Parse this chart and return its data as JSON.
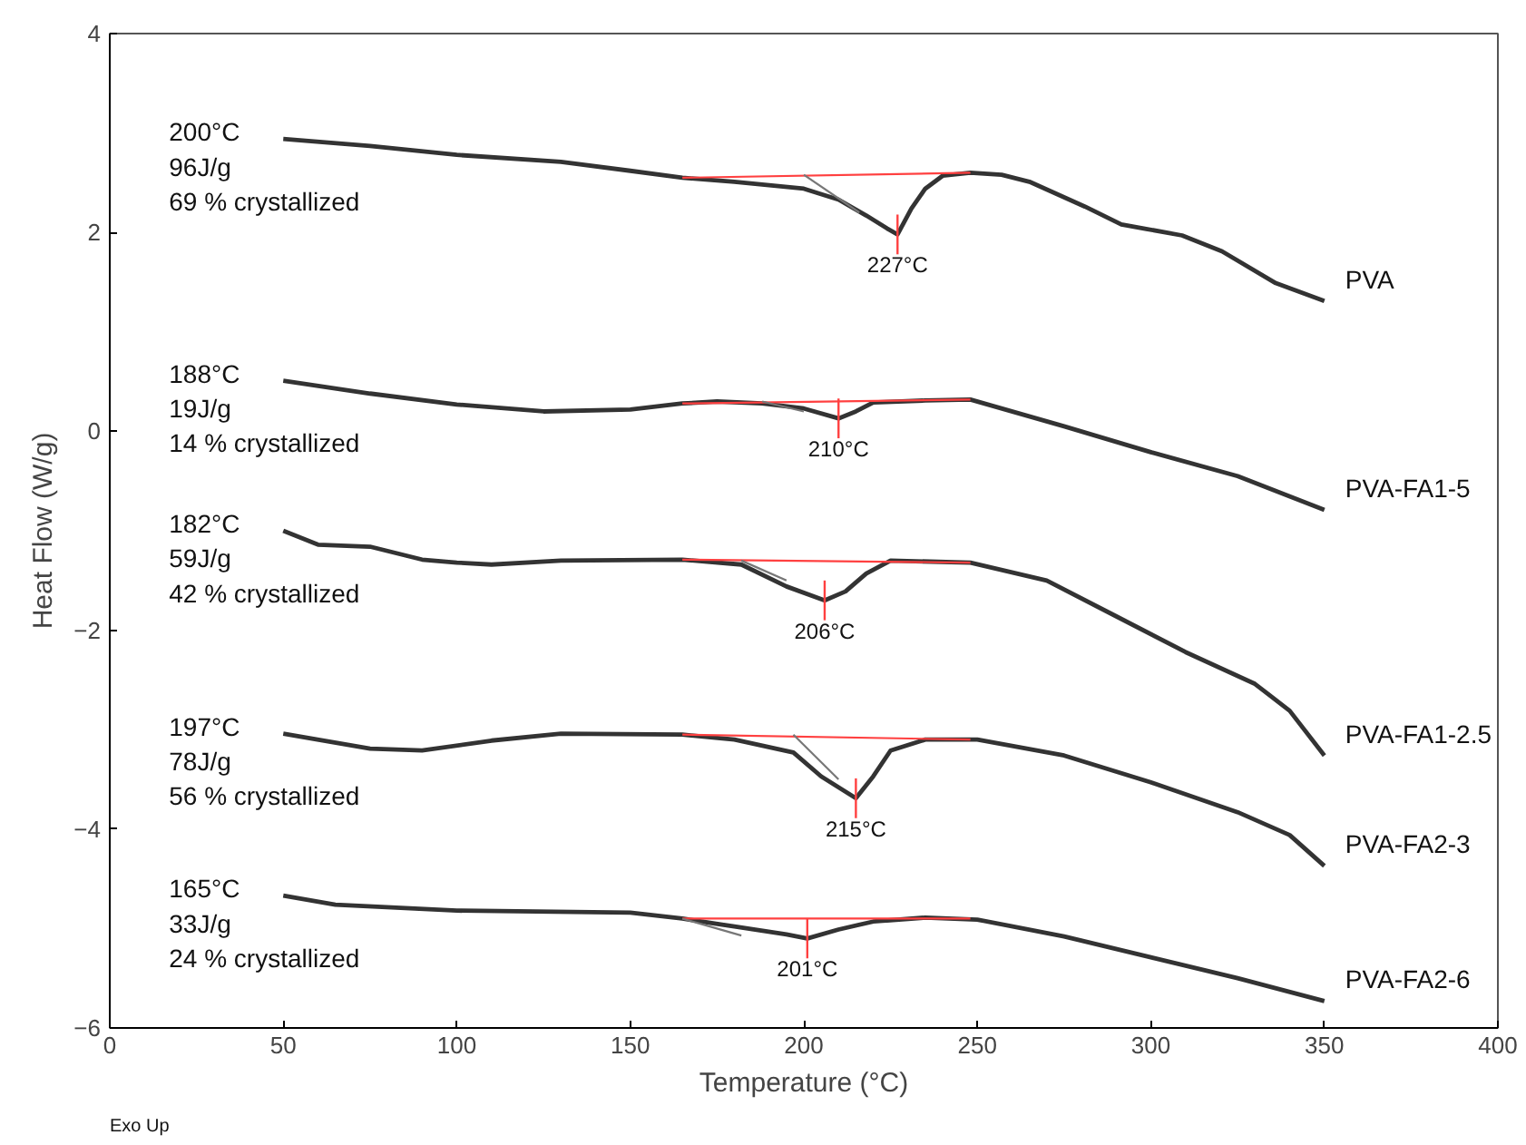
{
  "chart_data": {
    "type": "line",
    "xlabel": "Temperature (°C)",
    "ylabel": "Heat Flow (W/g)",
    "xlim": [
      0,
      400
    ],
    "ylim": [
      -6,
      4
    ],
    "xticks": [
      0,
      50,
      100,
      150,
      200,
      250,
      300,
      350,
      400
    ],
    "yticks": [
      -6,
      -4,
      -2,
      0,
      2,
      4
    ],
    "grid": false,
    "series": [
      {
        "name": "PVA",
        "color": "#333333",
        "x": [
          50,
          75,
          100,
          130,
          150,
          165,
          180,
          200,
          210,
          218,
          224,
          227,
          231,
          235,
          240,
          248,
          257,
          265,
          281,
          291.5,
          309,
          320.5,
          336,
          350
        ],
        "values": [
          2.94,
          2.87,
          2.78,
          2.71,
          2.62,
          2.55,
          2.51,
          2.44,
          2.33,
          2.17,
          2.04,
          1.98,
          2.24,
          2.44,
          2.57,
          2.6,
          2.58,
          2.51,
          2.26,
          2.08,
          1.97,
          1.81,
          1.49,
          1.31
        ]
      },
      {
        "name": "PVA-FA1-5",
        "color": "#333333",
        "x": [
          50,
          75,
          100,
          125,
          150,
          165,
          175,
          188,
          200,
          210,
          215,
          220,
          235,
          248,
          275,
          300,
          325,
          350
        ],
        "values": [
          0.51,
          0.38,
          0.27,
          0.2,
          0.22,
          0.28,
          0.3,
          0.28,
          0.23,
          0.13,
          0.2,
          0.29,
          0.31,
          0.32,
          0.05,
          -0.21,
          -0.45,
          -0.79
        ]
      },
      {
        "name": "PVA-FA1-2.5",
        "color": "#333333",
        "x": [
          50,
          60,
          75,
          90,
          100,
          110,
          130,
          165,
          182,
          195,
          206,
          212,
          218,
          225,
          248,
          270,
          290,
          310,
          330,
          340,
          350
        ],
        "values": [
          -1.0,
          -1.14,
          -1.16,
          -1.29,
          -1.32,
          -1.34,
          -1.3,
          -1.29,
          -1.34,
          -1.56,
          -1.7,
          -1.61,
          -1.43,
          -1.3,
          -1.32,
          -1.5,
          -1.86,
          -2.22,
          -2.54,
          -2.81,
          -3.26
        ]
      },
      {
        "name": "PVA-FA2-3",
        "color": "#333333",
        "x": [
          50,
          75,
          90,
          110,
          130,
          165,
          180,
          197,
          205,
          215,
          220,
          225,
          235,
          250,
          275,
          300,
          325,
          340,
          350
        ],
        "values": [
          -3.04,
          -3.19,
          -3.21,
          -3.11,
          -3.04,
          -3.05,
          -3.1,
          -3.23,
          -3.47,
          -3.69,
          -3.47,
          -3.21,
          -3.1,
          -3.1,
          -3.26,
          -3.53,
          -3.83,
          -4.06,
          -4.37
        ]
      },
      {
        "name": "PVA-FA2-6",
        "color": "#333333",
        "x": [
          50,
          65,
          100,
          150,
          165,
          180,
          195,
          201,
          210,
          220,
          235,
          250,
          275,
          300,
          325,
          350
        ],
        "values": [
          -4.67,
          -4.76,
          -4.82,
          -4.84,
          -4.9,
          -4.98,
          -5.06,
          -5.1,
          -5.01,
          -4.93,
          -4.89,
          -4.91,
          -5.08,
          -5.29,
          -5.5,
          -5.73
        ]
      },
      {
        "color": "#ff4040",
        "x": [
          165,
          248
        ],
        "values": [
          2.55,
          2.6
        ]
      },
      {
        "color": "#ff4040",
        "x": [
          165,
          248
        ],
        "values": [
          0.28,
          0.32
        ]
      },
      {
        "color": "#ff4040",
        "x": [
          165,
          248
        ],
        "values": [
          -1.29,
          -1.32
        ]
      },
      {
        "color": "#ff4040",
        "x": [
          165,
          248
        ],
        "values": [
          -3.05,
          -3.1
        ]
      },
      {
        "color": "#ff4040",
        "x": [
          165,
          248
        ],
        "values": [
          -4.9,
          -4.9
        ]
      },
      {
        "color": "#777777",
        "x": [
          200,
          216
        ],
        "values": [
          2.58,
          2.2
        ]
      },
      {
        "color": "#777777",
        "x": [
          188,
          200
        ],
        "values": [
          0.3,
          0.2
        ]
      },
      {
        "color": "#777777",
        "x": [
          182,
          195
        ],
        "values": [
          -1.3,
          -1.5
        ]
      },
      {
        "color": "#777777",
        "x": [
          197,
          210
        ],
        "values": [
          -3.05,
          -3.5
        ]
      },
      {
        "color": "#777777",
        "x": [
          165,
          182
        ],
        "values": [
          -4.9,
          -5.07
        ]
      }
    ],
    "annotations": [
      "200°C\n96J/g\n69 % crystallized",
      "188°C\n19J/g\n14 % crystallized",
      "182°C\n59J/g\n42 % crystallized",
      "197°C\n78J/g\n56 % crystallized",
      "165°C\n33J/g\n24 % crystallized",
      "Exo Up",
      {
        "text": "227°C",
        "x": 227,
        "y": 1.98
      },
      {
        "text": "210°C",
        "x": 210,
        "y": 0.13
      },
      {
        "text": "206°C",
        "x": 206,
        "y": -1.7
      },
      {
        "text": "215°C",
        "x": 215,
        "y": -3.69
      },
      {
        "text": "201°C",
        "x": 201,
        "y": -5.1
      }
    ]
  }
}
